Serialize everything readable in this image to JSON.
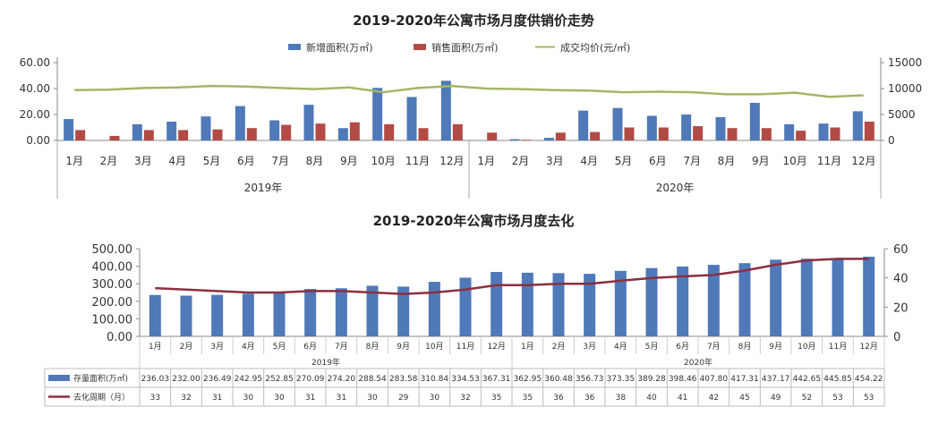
{
  "chart_data": [
    {
      "type": "bar",
      "title": "2019-2020年公寓市场月度供销价走势",
      "legend": [
        "新增面积(万㎡)",
        "销售面积(万㎡)",
        "成交均价(元/㎡)"
      ],
      "legend_position": "top",
      "categories": [
        "1月",
        "2月",
        "3月",
        "4月",
        "5月",
        "6月",
        "7月",
        "8月",
        "9月",
        "10月",
        "11月",
        "12月",
        "1月",
        "2月",
        "3月",
        "4月",
        "5月",
        "6月",
        "7月",
        "8月",
        "9月",
        "10月",
        "11月",
        "12月"
      ],
      "groups": [
        {
          "label": "2019年",
          "count": 12
        },
        {
          "label": "2020年",
          "count": 12
        }
      ],
      "y_left": {
        "ticks": [
          "0.00",
          "20.00",
          "40.00",
          "60.00"
        ],
        "range": [
          0,
          60
        ]
      },
      "y_right": {
        "ticks": [
          "0",
          "5000",
          "10000",
          "15000"
        ],
        "range": [
          0,
          15000
        ]
      },
      "grid": false,
      "series": [
        {
          "name": "新增面积(万㎡)",
          "kind": "bar",
          "axis": "left",
          "color": "#4f79b8",
          "values": [
            16.5,
            0,
            12.5,
            14.5,
            18.5,
            26.5,
            15.5,
            27.5,
            9.5,
            40.5,
            33.5,
            46.0,
            0,
            1.0,
            2.0,
            23.0,
            25.0,
            19.0,
            20.0,
            18.0,
            29.0,
            12.5,
            13.0,
            22.5
          ]
        },
        {
          "name": "销售面积(万㎡)",
          "kind": "bar",
          "axis": "left",
          "color": "#b24a45",
          "values": [
            8.0,
            3.5,
            8.0,
            8.0,
            8.5,
            9.5,
            12.0,
            13.0,
            14.0,
            12.5,
            9.5,
            12.5,
            6.0,
            0.5,
            6.0,
            6.5,
            10.0,
            10.0,
            11.0,
            9.5,
            9.5,
            7.5,
            10.0,
            14.5
          ]
        },
        {
          "name": "成交均价(元/㎡)",
          "kind": "line",
          "axis": "right",
          "color": "#a3b667",
          "values": [
            9700,
            9800,
            10100,
            10200,
            10500,
            10400,
            10100,
            9900,
            10200,
            9300,
            10100,
            10500,
            10000,
            9900,
            9700,
            9600,
            9300,
            9400,
            9300,
            8900,
            8900,
            9200,
            8400,
            8700
          ]
        }
      ]
    },
    {
      "type": "bar",
      "title": "2019-2020年公寓市场月度去化",
      "categories": [
        "1月",
        "2月",
        "3月",
        "4月",
        "5月",
        "6月",
        "7月",
        "8月",
        "9月",
        "10月",
        "11月",
        "12月",
        "1月",
        "2月",
        "3月",
        "4月",
        "5月",
        "6月",
        "7月",
        "8月",
        "9月",
        "10月",
        "11月",
        "12月"
      ],
      "groups": [
        {
          "label": "2019年",
          "count": 12
        },
        {
          "label": "2020年",
          "count": 12
        }
      ],
      "y_left": {
        "ticks": [
          "0.00",
          "100.00",
          "200.00",
          "300.00",
          "400.00",
          "500.00"
        ],
        "range": [
          0,
          500
        ]
      },
      "y_right": {
        "ticks": [
          "0",
          "20",
          "40",
          "60"
        ],
        "range": [
          0,
          60
        ]
      },
      "grid": false,
      "legend_position": "table-left",
      "series": [
        {
          "name": "存量面积(万㎡)",
          "kind": "bar",
          "axis": "left",
          "color": "#4f79b8",
          "values": [
            236.03,
            232.0,
            236.49,
            242.95,
            252.85,
            270.09,
            274.2,
            288.54,
            283.58,
            310.84,
            334.53,
            367.31,
            362.95,
            360.48,
            356.73,
            373.35,
            389.28,
            398.46,
            407.8,
            417.31,
            437.17,
            442.65,
            445.85,
            454.22
          ]
        },
        {
          "name": "去化周期（月）",
          "kind": "line",
          "axis": "right",
          "color": "#8b2f3f",
          "values": [
            33,
            32,
            31,
            30,
            30,
            31,
            31,
            30,
            29,
            30,
            32,
            35,
            35,
            36,
            36,
            38,
            40,
            41,
            42,
            45,
            49,
            52,
            53,
            53
          ]
        }
      ]
    }
  ]
}
